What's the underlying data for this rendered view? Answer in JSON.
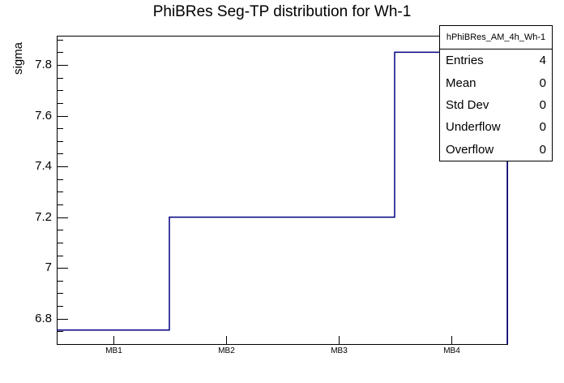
{
  "title": "PhiBRes Seg-TP distribution for Wh-1",
  "y_axis": {
    "label": "sigma",
    "tick_labels": [
      "6.8",
      "7",
      "7.2",
      "7.4",
      "7.6",
      "7.8"
    ]
  },
  "x_axis": {
    "tick_labels": [
      "MB1",
      "MB2",
      "MB3",
      "MB4"
    ]
  },
  "stats_box": {
    "header": "hPhiBRes_AM_4h_Wh-1",
    "rows": [
      {
        "label": "Entries",
        "value": "4"
      },
      {
        "label": "Mean",
        "value": "0"
      },
      {
        "label": "Std Dev",
        "value": "0"
      },
      {
        "label": "Underflow",
        "value": "0"
      },
      {
        "label": "Overflow",
        "value": "0"
      }
    ]
  },
  "colors": {
    "background": "#ffffff",
    "frame": "#000000",
    "text": "#000000",
    "histogram_line": "#000080"
  },
  "chart_data": {
    "type": "line",
    "subtype": "step-histogram",
    "title": "PhiBRes Seg-TP distribution for Wh-1",
    "xlabel": "",
    "ylabel": "sigma",
    "categories": [
      "MB1",
      "MB2",
      "MB3",
      "MB4"
    ],
    "values": [
      6.755,
      7.2,
      7.2,
      7.85
    ],
    "ylim": [
      6.7,
      7.915
    ],
    "y_major_ticks": [
      6.8,
      7.0,
      7.2,
      7.4,
      7.6,
      7.8
    ],
    "y_minor_tick_step": 0.05,
    "grid": false,
    "legend": false
  }
}
